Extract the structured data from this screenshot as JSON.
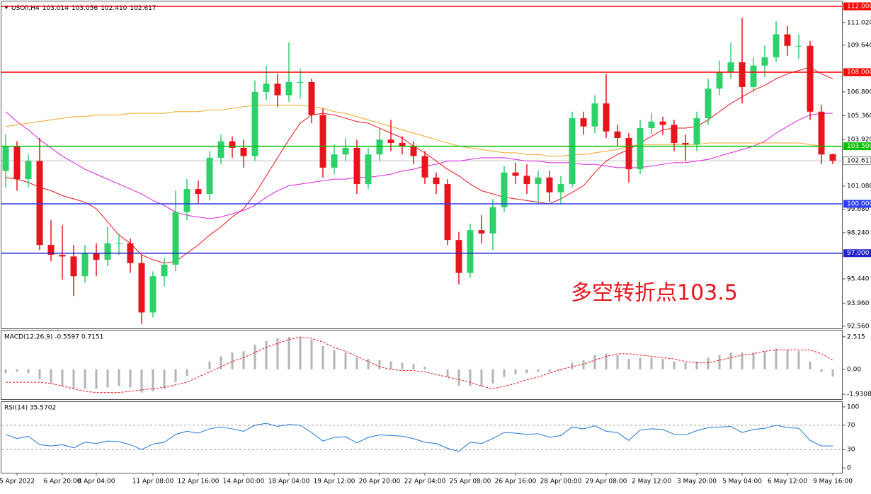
{
  "chart_data": {
    "type": "candlestick",
    "symbol": "USOil,H4",
    "ohlc_labels": [
      "103.014",
      "103.056",
      "102.410",
      "102.617"
    ],
    "annotation": "多空转折点103.5",
    "up_color": "#2ed06a",
    "down_color": "#e8141c",
    "categories": [
      null,
      "5 Apr 2022",
      null,
      null,
      null,
      "6 Apr 20:00",
      null,
      null,
      "8 Apr 04:00",
      null,
      null,
      null,
      null,
      "11 Apr 08:00",
      null,
      null,
      null,
      "12 Apr 16:00",
      null,
      null,
      null,
      "14 Apr 00:00",
      null,
      null,
      null,
      "18 Apr 04:00",
      null,
      null,
      null,
      "19 Apr 12:00",
      null,
      null,
      null,
      "20 Apr 20:00",
      null,
      null,
      null,
      "22 Apr 04:00",
      null,
      null,
      null,
      "25 Apr 08:00",
      null,
      null,
      null,
      "26 Apr 16:00",
      null,
      null,
      null,
      "28 Apr 00:00",
      null,
      null,
      null,
      "29 Apr 08:00",
      null,
      null,
      null,
      "2 May 12:00",
      null,
      null,
      null,
      "3 May 20:00",
      null,
      null,
      null,
      "5 May 04:00",
      null,
      null,
      null,
      "6 May 12:00",
      null,
      null,
      null,
      "9 May 16:00"
    ],
    "ohlc": [
      [
        102.0,
        104.2,
        101.0,
        103.5
      ],
      [
        103.5,
        103.8,
        100.8,
        101.5
      ],
      [
        101.5,
        103.0,
        101.0,
        102.6
      ],
      [
        102.6,
        104.0,
        97.2,
        97.5
      ],
      [
        97.5,
        99.0,
        96.5,
        96.9
      ],
      [
        96.9,
        98.7,
        95.4,
        96.8
      ],
      [
        96.8,
        97.5,
        94.4,
        95.6
      ],
      [
        95.6,
        97.5,
        95.2,
        97.0
      ],
      [
        97.0,
        97.6,
        95.6,
        96.6
      ],
      [
        96.6,
        98.6,
        96.2,
        97.6
      ],
      [
        97.6,
        98.2,
        96.9,
        97.6
      ],
      [
        97.6,
        97.9,
        95.8,
        96.4
      ],
      [
        96.4,
        96.9,
        92.7,
        93.4
      ],
      [
        93.4,
        95.9,
        93.1,
        95.6
      ],
      [
        95.6,
        96.7,
        95.0,
        96.3
      ],
      [
        96.3,
        100.8,
        95.9,
        99.5
      ],
      [
        99.5,
        101.5,
        99.0,
        100.9
      ],
      [
        100.9,
        101.4,
        100.0,
        100.6
      ],
      [
        100.6,
        103.2,
        100.2,
        102.8
      ],
      [
        102.8,
        104.2,
        102.4,
        103.8
      ],
      [
        103.8,
        104.1,
        102.8,
        103.4
      ],
      [
        103.4,
        103.9,
        102.2,
        102.9
      ],
      [
        102.9,
        107.5,
        102.6,
        106.8
      ],
      [
        106.8,
        108.4,
        106.3,
        107.3
      ],
      [
        107.3,
        107.9,
        105.9,
        106.6
      ],
      [
        106.6,
        109.8,
        106.2,
        107.4
      ],
      [
        107.4,
        108.2,
        106.4,
        107.4
      ],
      [
        107.4,
        107.6,
        104.9,
        105.4
      ],
      [
        105.4,
        105.8,
        101.6,
        102.2
      ],
      [
        102.2,
        103.6,
        101.8,
        103.0
      ],
      [
        103.0,
        104.0,
        102.6,
        103.4
      ],
      [
        103.4,
        103.9,
        100.6,
        101.2
      ],
      [
        101.2,
        103.4,
        100.9,
        103.0
      ],
      [
        103.0,
        104.6,
        102.6,
        103.9
      ],
      [
        103.9,
        105.1,
        103.2,
        103.7
      ],
      [
        103.7,
        104.1,
        103.0,
        103.5
      ],
      [
        103.5,
        103.8,
        102.4,
        102.9
      ],
      [
        102.9,
        103.2,
        101.2,
        101.6
      ],
      [
        101.6,
        101.9,
        100.6,
        101.2
      ],
      [
        101.2,
        101.5,
        97.5,
        97.8
      ],
      [
        97.8,
        98.3,
        95.1,
        95.8
      ],
      [
        95.8,
        98.8,
        95.5,
        98.4
      ],
      [
        98.4,
        99.3,
        97.6,
        98.2
      ],
      [
        98.2,
        100.3,
        97.2,
        99.8
      ],
      [
        99.8,
        102.3,
        99.5,
        101.9
      ],
      [
        101.9,
        102.5,
        101.2,
        101.7
      ],
      [
        101.7,
        102.4,
        100.6,
        101.2
      ],
      [
        101.2,
        102.0,
        100.0,
        101.6
      ],
      [
        101.6,
        102.0,
        100.1,
        100.7
      ],
      [
        100.7,
        101.7,
        100.0,
        101.2
      ],
      [
        101.2,
        105.6,
        101.0,
        105.2
      ],
      [
        105.2,
        105.6,
        104.2,
        104.7
      ],
      [
        104.7,
        106.6,
        104.3,
        106.1
      ],
      [
        106.1,
        107.9,
        104.0,
        104.4
      ],
      [
        104.4,
        104.8,
        103.5,
        104.0
      ],
      [
        104.0,
        104.3,
        101.3,
        102.1
      ],
      [
        102.1,
        105.1,
        101.8,
        104.6
      ],
      [
        104.6,
        105.5,
        104.2,
        105.0
      ],
      [
        105.0,
        105.3,
        104.2,
        104.8
      ],
      [
        104.8,
        105.1,
        103.2,
        103.7
      ],
      [
        103.7,
        104.2,
        102.6,
        103.6
      ],
      [
        103.6,
        105.6,
        103.2,
        105.2
      ],
      [
        105.2,
        107.6,
        104.8,
        107.0
      ],
      [
        107.0,
        108.7,
        106.6,
        108.0
      ],
      [
        108.0,
        109.8,
        107.6,
        108.6
      ],
      [
        108.6,
        111.3,
        106.1,
        107.1
      ],
      [
        107.1,
        108.9,
        106.8,
        108.4
      ],
      [
        108.4,
        109.6,
        107.7,
        108.9
      ],
      [
        108.9,
        111.1,
        108.6,
        110.3
      ],
      [
        110.3,
        110.8,
        109.0,
        109.6
      ],
      [
        109.6,
        110.3,
        108.8,
        109.6
      ],
      [
        109.6,
        109.9,
        105.1,
        105.6
      ],
      [
        105.6,
        106.0,
        102.4,
        103.0
      ],
      [
        103.014,
        103.056,
        102.41,
        102.617
      ]
    ],
    "moving_averages": [
      {
        "color": "#e8141c",
        "values": [
          101.6,
          101.5,
          101.3,
          101.0,
          100.8,
          100.5,
          100.3,
          100.1,
          99.7,
          98.9,
          98.1,
          97.6,
          96.9,
          96.6,
          96.4,
          96.5,
          97.0,
          97.5,
          98.1,
          98.6,
          99.2,
          99.7,
          100.6,
          101.7,
          102.8,
          103.9,
          104.9,
          105.4,
          105.5,
          105.4,
          105.2,
          105.0,
          104.9,
          104.6,
          104.3,
          104.0,
          103.5,
          103.1,
          102.6,
          102.1,
          101.7,
          101.2,
          100.8,
          100.6,
          100.4,
          100.3,
          100.2,
          100.1,
          100.0,
          100.3,
          100.7,
          101.1,
          101.9,
          102.6,
          103.0,
          103.3,
          103.7,
          104.1,
          104.5,
          104.6,
          104.6,
          104.7,
          105.1,
          105.6,
          106.1,
          106.5,
          106.9,
          107.2,
          107.6,
          107.9,
          108.1,
          108.3,
          107.9,
          107.6
        ]
      },
      {
        "color": "#e020e0",
        "values": [
          105.6,
          105.0,
          104.5,
          103.9,
          103.4,
          102.9,
          102.5,
          102.1,
          101.8,
          101.5,
          101.2,
          100.9,
          100.6,
          100.2,
          99.9,
          99.5,
          99.3,
          99.2,
          99.1,
          99.2,
          99.4,
          99.6,
          99.9,
          100.4,
          100.8,
          101.1,
          101.2,
          101.3,
          101.4,
          101.5,
          101.5,
          101.6,
          101.6,
          101.7,
          101.8,
          102.0,
          102.1,
          102.3,
          102.4,
          102.6,
          102.6,
          102.7,
          102.8,
          102.8,
          102.8,
          102.7,
          102.6,
          102.6,
          102.5,
          102.5,
          102.5,
          102.4,
          102.4,
          102.3,
          102.2,
          102.2,
          102.2,
          102.3,
          102.4,
          102.5,
          102.5,
          102.6,
          102.7,
          102.9,
          103.1,
          103.3,
          103.5,
          103.8,
          104.3,
          104.7,
          105.1,
          105.4,
          105.5,
          105.5
        ]
      },
      {
        "color": "#f5a623",
        "values": [
          104.7,
          104.8,
          104.9,
          105.0,
          105.1,
          105.2,
          105.3,
          105.3,
          105.4,
          105.4,
          105.4,
          105.5,
          105.5,
          105.5,
          105.5,
          105.6,
          105.6,
          105.6,
          105.7,
          105.7,
          105.8,
          105.9,
          106.0,
          106.0,
          106.0,
          106.0,
          106.0,
          105.9,
          105.8,
          105.6,
          105.5,
          105.3,
          105.1,
          104.9,
          104.7,
          104.5,
          104.3,
          104.1,
          103.9,
          103.7,
          103.5,
          103.4,
          103.3,
          103.2,
          103.1,
          103.1,
          103.0,
          103.0,
          102.9,
          102.9,
          103.0,
          103.0,
          103.1,
          103.2,
          103.3,
          103.5,
          103.6,
          103.6,
          103.6,
          103.6,
          103.6,
          103.6,
          103.7,
          103.7,
          103.7,
          103.7,
          103.7,
          103.7,
          103.7,
          103.7,
          103.7,
          103.6,
          103.5,
          103.5
        ]
      }
    ],
    "ylim": [
      92.43,
      112.3
    ],
    "yticks": [
      {
        "value": 111.02,
        "label": "111.020"
      },
      {
        "value": 109.64,
        "label": "109.640"
      },
      {
        "value": 106.8,
        "label": "106.800"
      },
      {
        "value": 105.36,
        "label": "105.360"
      },
      {
        "value": 103.92,
        "label": "103.920"
      },
      {
        "value": 101.08,
        "label": "101.080"
      },
      {
        "value": 99.68,
        "label": "99.680"
      },
      {
        "value": 98.24,
        "label": "98.240"
      },
      {
        "value": 95.44,
        "label": "95.440"
      },
      {
        "value": 93.96,
        "label": "93.960"
      },
      {
        "value": 92.56,
        "label": "92.560"
      }
    ],
    "levels": [
      {
        "value": 112,
        "label": "112.000",
        "color": "#ff0000"
      },
      {
        "value": 108,
        "label": "108.000",
        "color": "#ff0000"
      },
      {
        "value": 103.5,
        "label": "103.500",
        "color": "#00c000"
      },
      {
        "value": 100,
        "label": "100.000",
        "color": "#2b3cff"
      },
      {
        "value": 97,
        "label": "97.000",
        "color": "#2222cc"
      }
    ],
    "last_price": 102.617,
    "macd": {
      "title": "MACD(12,26,9) -0.5597 0.7151",
      "ylim": [
        -2.31,
        3.0
      ],
      "yticks": [
        2.515,
        {
          "value": 0,
          "label": "0.00"
        },
        -1.9308
      ],
      "histogram": [
        -0.3,
        -0.2,
        -0.3,
        -0.8,
        -1.1,
        -1.3,
        -1.5,
        -1.5,
        -1.5,
        -1.4,
        -1.3,
        -1.4,
        -1.8,
        -1.7,
        -1.5,
        -1.0,
        -0.5,
        0.0,
        0.6,
        1.0,
        1.3,
        1.4,
        1.9,
        2.2,
        2.4,
        2.5,
        2.5,
        2.3,
        1.8,
        1.5,
        1.3,
        0.9,
        0.8,
        0.7,
        0.6,
        0.5,
        0.4,
        0.2,
        0.0,
        -0.6,
        -1.3,
        -1.3,
        -1.3,
        -1.1,
        -0.6,
        -0.4,
        -0.3,
        -0.2,
        -0.2,
        -0.1,
        0.5,
        0.7,
        1.1,
        1.2,
        1.1,
        0.8,
        0.9,
        0.9,
        0.8,
        0.6,
        0.5,
        0.6,
        0.9,
        1.1,
        1.3,
        1.3,
        1.3,
        1.4,
        1.6,
        1.5,
        1.4,
        0.6,
        -0.2,
        -0.56
      ],
      "signal": [
        -1.0,
        -1.0,
        -1.0,
        -1.0,
        -1.1,
        -1.3,
        -1.5,
        -1.7,
        -1.8,
        -1.8,
        -1.8,
        -1.7,
        -1.6,
        -1.5,
        -1.4,
        -1.2,
        -1.0,
        -0.6,
        -0.2,
        0.2,
        0.6,
        0.9,
        1.3,
        1.7,
        2.0,
        2.3,
        2.5,
        2.4,
        2.1,
        1.7,
        1.4,
        1.0,
        0.6,
        0.2,
        0.0,
        -0.1,
        -0.1,
        -0.2,
        -0.4,
        -0.6,
        -0.8,
        -1.0,
        -1.3,
        -1.5,
        -1.3,
        -1.1,
        -0.8,
        -0.6,
        -0.3,
        0.0,
        0.2,
        0.4,
        0.7,
        1.0,
        1.2,
        1.2,
        1.1,
        1.0,
        0.9,
        0.8,
        0.6,
        0.5,
        0.5,
        0.7,
        0.9,
        1.1,
        1.2,
        1.4,
        1.5,
        1.5,
        1.5,
        1.5,
        1.2,
        0.7
      ],
      "histogram_color": "#b4b4b4",
      "signal_color": "#e8141c"
    },
    "rsi": {
      "title": "RSI(14) 35.5702",
      "ylim": [
        -8,
        108
      ],
      "yticks": [
        100,
        70,
        30,
        0
      ],
      "dashed": [
        false,
        true,
        true,
        false
      ],
      "color": "#1e78d4",
      "values": [
        55,
        48,
        52,
        38,
        36,
        38,
        33,
        42,
        40,
        44,
        43,
        38,
        30,
        39,
        42,
        55,
        60,
        57,
        64,
        67,
        64,
        60,
        70,
        73,
        68,
        71,
        70,
        58,
        44,
        50,
        51,
        41,
        50,
        54,
        53,
        52,
        48,
        42,
        40,
        32,
        27,
        42,
        40,
        48,
        58,
        57,
        55,
        56,
        50,
        53,
        67,
        64,
        69,
        60,
        58,
        45,
        62,
        64,
        63,
        55,
        54,
        61,
        66,
        67,
        68,
        58,
        63,
        65,
        70,
        66,
        65,
        45,
        36,
        36
      ]
    }
  }
}
